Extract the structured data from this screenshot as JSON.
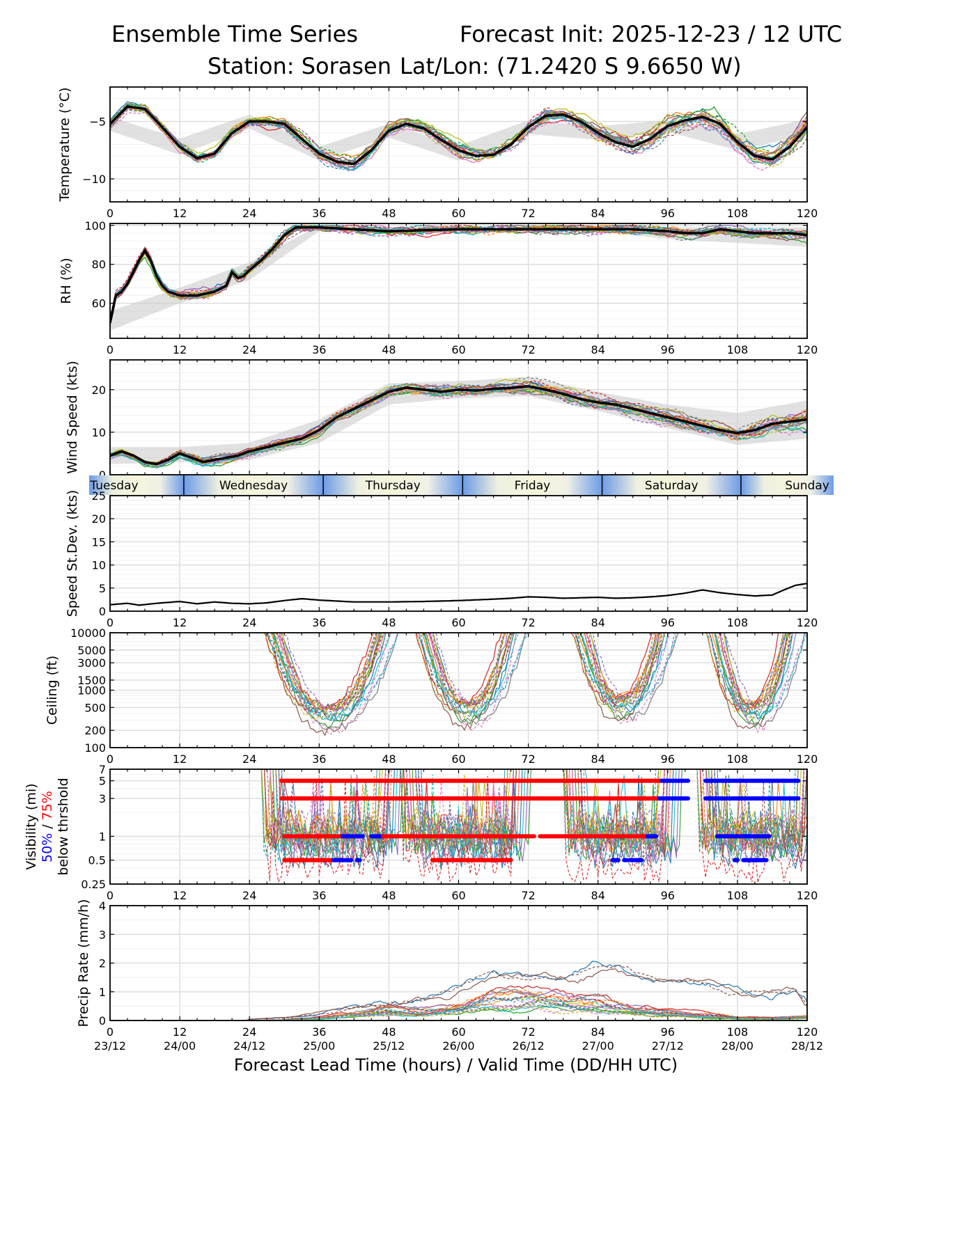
{
  "header": {
    "title_left": "Ensemble Time Series",
    "title_right": "Forecast Init: 2025-12-23 / 12 UTC",
    "station": "Station: Sorasen",
    "latlon": "Lat/Lon: (71.2420 S 9.6650 W)"
  },
  "colors": {
    "ensemble_palette": [
      "#1f77b4",
      "#ff7f0e",
      "#2ca02c",
      "#d62728",
      "#9467bd",
      "#8c564b",
      "#e377c2",
      "#7f7f7f",
      "#bcbd22",
      "#17becf"
    ],
    "mean": "#000000",
    "spread": "#c8c8c8",
    "vis_50": "#0000ff",
    "vis_75": "#ff0000",
    "day_light": "#f5f5dc",
    "day_dark": "#6c9be6"
  },
  "chart_data": [
    {
      "type": "line",
      "id": "temperature",
      "ylabel": "Temperature (°C)",
      "xlim": [
        0,
        120
      ],
      "ylim": [
        -12,
        -2
      ],
      "yticks": [
        -5,
        -10
      ],
      "ytick_labels": [
        "−5",
        "−10"
      ],
      "xticks": [
        0,
        12,
        24,
        36,
        48,
        60,
        72,
        84,
        96,
        108,
        120
      ],
      "xtick_labels": [
        "0",
        "12",
        "24",
        "36",
        "48",
        "60",
        "72",
        "84",
        "96",
        "108",
        "120"
      ],
      "series": [
        {
          "name": "Ensemble mean",
          "x": [
            0,
            3,
            6,
            9,
            12,
            15,
            18,
            21,
            24,
            27,
            30,
            33,
            36,
            39,
            42,
            45,
            48,
            51,
            54,
            57,
            60,
            63,
            66,
            69,
            72,
            75,
            78,
            81,
            84,
            87,
            90,
            93,
            96,
            99,
            102,
            105,
            108,
            111,
            114,
            117,
            120
          ],
          "values": [
            -5.2,
            -3.7,
            -3.9,
            -5.5,
            -7.2,
            -8.2,
            -7.8,
            -6.0,
            -5.0,
            -5.0,
            -5.2,
            -6.5,
            -7.8,
            -8.5,
            -8.7,
            -7.5,
            -5.8,
            -5.2,
            -5.6,
            -6.6,
            -7.5,
            -8.0,
            -7.9,
            -7.0,
            -5.5,
            -4.5,
            -4.4,
            -5.0,
            -6.0,
            -6.8,
            -7.2,
            -6.5,
            -5.4,
            -4.9,
            -4.6,
            -5.2,
            -6.8,
            -8.0,
            -8.3,
            -7.2,
            -5.5
          ]
        },
        {
          "name": "Spread band",
          "x": [
            0,
            12,
            24,
            36,
            48,
            60,
            72,
            84,
            96,
            108,
            120
          ],
          "lower": [
            -5.8,
            -7.9,
            -5.6,
            -8.4,
            -6.4,
            -8.4,
            -6.1,
            -6.6,
            -5.9,
            -7.5,
            -6.2
          ],
          "upper": [
            -4.6,
            -6.5,
            -4.4,
            -7.2,
            -5.2,
            -7.1,
            -4.9,
            -5.4,
            -4.9,
            -6.1,
            -4.8
          ]
        }
      ]
    },
    {
      "type": "line",
      "id": "rh",
      "ylabel": "RH (%)",
      "xlim": [
        0,
        120
      ],
      "ylim": [
        42,
        101
      ],
      "yticks": [
        60,
        80,
        100
      ],
      "ytick_labels": [
        "60",
        "80",
        "100"
      ],
      "xticks": [
        0,
        12,
        24,
        36,
        48,
        60,
        72,
        84,
        96,
        108,
        120
      ],
      "xtick_labels": [
        "0",
        "12",
        "24",
        "36",
        "48",
        "60",
        "72",
        "84",
        "96",
        "108",
        "120"
      ],
      "series": [
        {
          "name": "Ensemble mean",
          "x": [
            0,
            1,
            2,
            3,
            4,
            5,
            6,
            7,
            8,
            9,
            10,
            12,
            15,
            18,
            20,
            21,
            22,
            23,
            24,
            26,
            28,
            30,
            32,
            36,
            48,
            60,
            72,
            84,
            90,
            96,
            99,
            102,
            105,
            108,
            111,
            114,
            117,
            120
          ],
          "values": [
            50,
            64,
            66,
            70,
            76,
            82,
            87,
            82,
            74,
            69,
            66,
            64,
            64,
            66,
            69,
            76,
            73,
            74,
            77,
            82,
            88,
            95,
            99,
            99,
            97,
            98,
            98,
            98,
            98,
            97,
            96,
            96,
            98,
            97,
            96,
            96,
            96,
            95
          ]
        },
        {
          "name": "Spread band",
          "x": [
            0,
            12,
            24,
            36,
            48,
            60,
            72,
            84,
            96,
            108,
            120
          ],
          "lower": [
            46,
            60,
            72,
            97,
            96,
            97,
            97,
            97,
            93,
            91,
            89
          ],
          "upper": [
            56,
            68,
            81,
            100,
            99,
            99,
            99,
            99,
            99,
            99,
            99
          ]
        }
      ]
    },
    {
      "type": "line",
      "id": "wind_speed",
      "ylabel": "Wind Speed (kts)",
      "xlim": [
        0,
        120
      ],
      "ylim": [
        0,
        27
      ],
      "yticks": [
        0,
        10,
        20
      ],
      "ytick_labels": [
        "0",
        "10",
        "20"
      ],
      "xticks": [
        0,
        12,
        24,
        36,
        48,
        60,
        72,
        84,
        96,
        108,
        120
      ],
      "xtick_labels": [
        "0",
        "12",
        "24",
        "36",
        "48",
        "60",
        "72",
        "84",
        "96",
        "108",
        "120"
      ],
      "series": [
        {
          "name": "Ensemble mean",
          "x": [
            0,
            2,
            4,
            6,
            8,
            10,
            12,
            14,
            16,
            18,
            20,
            22,
            24,
            27,
            30,
            33,
            36,
            39,
            42,
            45,
            48,
            51,
            54,
            57,
            60,
            63,
            66,
            69,
            72,
            75,
            78,
            81,
            84,
            87,
            90,
            93,
            96,
            99,
            102,
            105,
            108,
            111,
            114,
            117,
            120
          ],
          "values": [
            4.5,
            5.5,
            4.5,
            3.0,
            2.5,
            3.5,
            5.0,
            4.0,
            3.0,
            3.5,
            4.0,
            4.5,
            5.5,
            6.5,
            7.5,
            8.5,
            10.5,
            13.5,
            15.5,
            17.5,
            19.5,
            20.5,
            20.0,
            19.5,
            20.0,
            19.8,
            20.2,
            20.4,
            20.8,
            20.0,
            19.0,
            17.8,
            17.0,
            16.5,
            15.5,
            14.5,
            13.5,
            12.5,
            11.5,
            10.5,
            9.8,
            10.5,
            12.0,
            12.5,
            13.0
          ]
        },
        {
          "name": "Spread band",
          "x": [
            0,
            12,
            24,
            36,
            48,
            60,
            72,
            84,
            96,
            108,
            120
          ],
          "lower": [
            2.5,
            3.0,
            3.5,
            7.5,
            16.5,
            18.0,
            18.5,
            15.0,
            11.0,
            7.0,
            8.5
          ],
          "upper": [
            6.5,
            6.5,
            7.5,
            13.0,
            21.5,
            22.0,
            23.0,
            19.5,
            16.5,
            14.5,
            17.5
          ]
        }
      ]
    },
    {
      "type": "line",
      "id": "speed_stdev",
      "ylabel": "Speed St.Dev. (kts)",
      "xlim": [
        0,
        120
      ],
      "ylim": [
        0,
        25
      ],
      "yticks": [
        0,
        5,
        10,
        15,
        20,
        25
      ],
      "ytick_labels": [
        "0",
        "5",
        "10",
        "15",
        "20",
        "25"
      ],
      "xticks": [
        0,
        12,
        24,
        36,
        48,
        60,
        72,
        84,
        96,
        108,
        120
      ],
      "xtick_labels": [
        "0",
        "12",
        "24",
        "36",
        "48",
        "60",
        "72",
        "84",
        "96",
        "108",
        "120"
      ],
      "series": [
        {
          "name": "Speed standard deviation",
          "x": [
            0,
            3,
            5,
            8,
            12,
            15,
            18,
            21,
            24,
            27,
            30,
            33,
            36,
            39,
            42,
            48,
            54,
            60,
            66,
            69,
            72,
            75,
            78,
            81,
            84,
            87,
            90,
            93,
            96,
            99,
            102,
            105,
            108,
            111,
            114,
            116,
            118,
            120
          ],
          "values": [
            1.4,
            1.7,
            1.3,
            1.7,
            2.1,
            1.6,
            2.0,
            1.7,
            1.6,
            1.8,
            2.3,
            2.7,
            2.4,
            2.2,
            2.0,
            2.0,
            2.1,
            2.3,
            2.6,
            2.8,
            3.1,
            3.0,
            2.8,
            2.9,
            3.0,
            2.8,
            2.9,
            3.1,
            3.4,
            3.9,
            4.6,
            4.0,
            3.6,
            3.3,
            3.5,
            4.6,
            5.6,
            6.0
          ]
        }
      ]
    },
    {
      "type": "line",
      "id": "ceiling",
      "ylabel": "Ceiling (ft)",
      "scale": "log",
      "xlim": [
        0,
        120
      ],
      "ylim": [
        100,
        10000
      ],
      "yticks": [
        100,
        200,
        500,
        1000,
        1500,
        3000,
        5000,
        10000
      ],
      "ytick_labels": [
        "100",
        "200",
        "500",
        "1000",
        "1500",
        "3000",
        "5000",
        "10000"
      ],
      "xticks": [
        0,
        12,
        24,
        36,
        48,
        60,
        72,
        84,
        96,
        108,
        120
      ],
      "xtick_labels": [
        "0",
        "12",
        "24",
        "36",
        "48",
        "60",
        "72",
        "84",
        "96",
        "108",
        "120"
      ],
      "series": [
        {
          "name": "Ensemble members (representative)",
          "cloud_episodes_hours": [
            [
              28,
              48
            ],
            [
              54,
              70
            ],
            [
              81,
              96
            ],
            [
              104,
              118
            ]
          ],
          "typical_low_ft": [
            220,
            260,
            320,
            240
          ]
        }
      ]
    },
    {
      "type": "line",
      "id": "visibility",
      "ylabel_parts": [
        "Visibility (mi)",
        "50%",
        " / ",
        "75%",
        "below thrshold"
      ],
      "scale": "log",
      "xlim": [
        0,
        120
      ],
      "ylim": [
        0.25,
        7
      ],
      "yticks": [
        0.25,
        0.5,
        1,
        3,
        5,
        7
      ],
      "ytick_labels": [
        "0.25",
        "0.5",
        "1",
        "3",
        "5",
        "7"
      ],
      "xticks": [
        0,
        12,
        24,
        36,
        48,
        60,
        72,
        84,
        96,
        108,
        120
      ],
      "xtick_labels": [
        "0",
        "12",
        "24",
        "36",
        "48",
        "60",
        "72",
        "84",
        "96",
        "108",
        "120"
      ],
      "threshold_segments": [
        {
          "threshold": 5,
          "color": "red",
          "from": 29.5,
          "to": 95.0
        },
        {
          "threshold": 5,
          "color": "blue",
          "from": 95.0,
          "to": 99.5
        },
        {
          "threshold": 5,
          "color": "blue",
          "from": 102.5,
          "to": 118.5
        },
        {
          "threshold": 3,
          "color": "red",
          "from": 29.5,
          "to": 94.5
        },
        {
          "threshold": 3,
          "color": "blue",
          "from": 94.5,
          "to": 99.5
        },
        {
          "threshold": 3,
          "color": "blue",
          "from": 102.5,
          "to": 118.5
        },
        {
          "threshold": 1,
          "color": "red",
          "from": 30.0,
          "to": 40.0
        },
        {
          "threshold": 1,
          "color": "blue",
          "from": 40.0,
          "to": 43.5
        },
        {
          "threshold": 1,
          "color": "blue",
          "from": 45.0,
          "to": 47.0
        },
        {
          "threshold": 1,
          "color": "red",
          "from": 47.0,
          "to": 73.0
        },
        {
          "threshold": 1,
          "color": "red",
          "from": 74.0,
          "to": 92.5
        },
        {
          "threshold": 1,
          "color": "blue",
          "from": 92.5,
          "to": 94.0
        },
        {
          "threshold": 1,
          "color": "blue",
          "from": 104.5,
          "to": 113.5
        },
        {
          "threshold": 0.5,
          "color": "red",
          "from": 30.0,
          "to": 38.5
        },
        {
          "threshold": 0.5,
          "color": "blue",
          "from": 38.5,
          "to": 41.5
        },
        {
          "threshold": 0.5,
          "color": "blue",
          "from": 42.5,
          "to": 43.0
        },
        {
          "threshold": 0.5,
          "color": "red",
          "from": 55.5,
          "to": 69.0
        },
        {
          "threshold": 0.5,
          "color": "blue",
          "from": 86.5,
          "to": 87.5
        },
        {
          "threshold": 0.5,
          "color": "blue",
          "from": 88.5,
          "to": 89.0
        },
        {
          "threshold": 0.5,
          "color": "blue",
          "from": 89.5,
          "to": 91.5
        },
        {
          "threshold": 0.5,
          "color": "blue",
          "from": 107.5,
          "to": 108.0
        },
        {
          "threshold": 0.5,
          "color": "blue",
          "from": 109.0,
          "to": 113.0
        }
      ]
    },
    {
      "type": "line",
      "id": "precip",
      "ylabel": "Precip Rate (mm/h)",
      "xlim": [
        0,
        120
      ],
      "ylim": [
        0,
        4
      ],
      "yticks": [
        0,
        1,
        2,
        3,
        4
      ],
      "ytick_labels": [
        "0",
        "1",
        "2",
        "3",
        "4"
      ],
      "xticks": [
        0,
        12,
        24,
        36,
        48,
        60,
        72,
        84,
        96,
        108,
        120
      ],
      "xtick_labels": [
        "0",
        "12",
        "24",
        "36",
        "48",
        "60",
        "72",
        "84",
        "96",
        "108",
        "120"
      ],
      "valid_time_labels": [
        "23/12",
        "24/00",
        "24/12",
        "25/00",
        "25/12",
        "26/00",
        "26/12",
        "27/00",
        "27/12",
        "28/00",
        "28/12"
      ],
      "xlabel": "Forecast Lead Time (hours) / Valid Time (DD/HH UTC)",
      "series": [
        {
          "name": "Ensemble typical",
          "x": [
            0,
            24,
            30,
            36,
            42,
            48,
            54,
            60,
            66,
            72,
            78,
            84,
            90,
            96,
            102,
            108,
            114,
            120
          ],
          "values": [
            0,
            0,
            0.02,
            0.1,
            0.25,
            0.4,
            0.35,
            0.5,
            0.8,
            0.9,
            0.8,
            0.6,
            0.45,
            0.3,
            0.2,
            0.12,
            0.08,
            0.15
          ]
        },
        {
          "name": "Ensemble maximum",
          "x": [
            0,
            24,
            30,
            36,
            42,
            48,
            54,
            60,
            66,
            72,
            78,
            84,
            87,
            90,
            96,
            102,
            108,
            114,
            118,
            120
          ],
          "values": [
            0,
            0.05,
            0.1,
            0.25,
            0.45,
            0.55,
            0.8,
            1.1,
            1.6,
            1.5,
            1.5,
            1.8,
            1.9,
            1.7,
            1.4,
            1.2,
            1.05,
            0.95,
            1.1,
            0.6
          ]
        }
      ]
    }
  ],
  "day_band": {
    "labels": [
      "Tuesday",
      "Wednesday",
      "Thursday",
      "Friday",
      "Saturday",
      "Sunday"
    ]
  }
}
